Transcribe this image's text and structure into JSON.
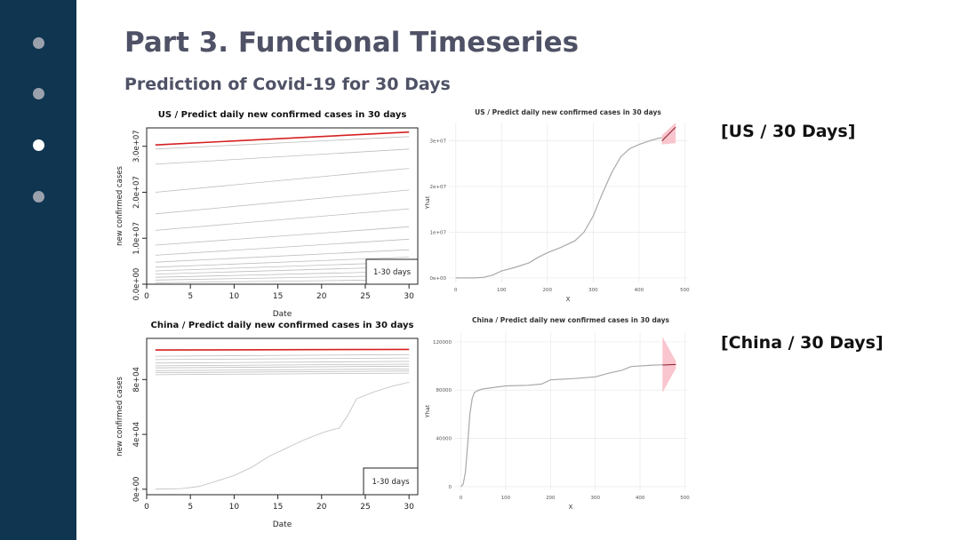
{
  "slide": {
    "title": "Part 3. Functional Timeseries",
    "subtitle": "Prediction of Covid-19 for 30 Days",
    "caption_us": "[US / 30 Days]",
    "caption_china": "[China / 30 Days]"
  },
  "nav": {
    "dots": [
      "inactive",
      "inactive",
      "active",
      "inactive"
    ]
  },
  "colors": {
    "sidebar": "#0f3550",
    "title": "#4f5266",
    "forecast": "#d62020",
    "band": "#f7b6c2"
  },
  "chart_data": [
    {
      "id": "us_fts",
      "type": "line",
      "title": "US / Predict daily new confirmed cases in 30 days",
      "xlabel": "Date",
      "ylabel": "new confirmed cases",
      "xlim": [
        0,
        31
      ],
      "ylim": [
        0,
        34000000
      ],
      "xticks": [
        0,
        5,
        10,
        15,
        20,
        25,
        30
      ],
      "yticks": [
        0,
        10000000,
        20000000,
        30000000
      ],
      "ytick_labels": [
        "0.0e+00",
        "1.0e+07",
        "2.0e+07",
        "3.0e+07"
      ],
      "legend": "1-30 days",
      "legend_position": "bottom-right",
      "x_start": 1,
      "x_end": 30,
      "highlight": {
        "start": 30300000,
        "end": 33100000
      },
      "curves": [
        [
          29400000,
          32100000
        ],
        [
          26100000,
          29400000
        ],
        [
          20000000,
          25200000
        ],
        [
          15300000,
          20500000
        ],
        [
          11700000,
          16400000
        ],
        [
          8500000,
          12500000
        ],
        [
          6300000,
          9800000
        ],
        [
          4800000,
          7500000
        ],
        [
          3700000,
          5900000
        ],
        [
          2900000,
          4800000
        ],
        [
          2200000,
          3800000
        ],
        [
          1500000,
          2800000
        ],
        [
          900000,
          1900000
        ],
        [
          300000,
          1000000
        ]
      ]
    },
    {
      "id": "us_pred",
      "type": "line",
      "title": "US / Predict daily new confirmed cases in 30 days",
      "xlabel": "X",
      "ylabel": "Yhat",
      "xlim": [
        -15,
        505
      ],
      "ylim": [
        -1000000,
        34000000
      ],
      "xticks": [
        0,
        100,
        200,
        300,
        400,
        500
      ],
      "yticks": [
        0,
        10000000,
        20000000,
        30000000
      ],
      "ytick_labels": [
        "0e+00",
        "1e+07",
        "2e+07",
        "3e+07"
      ],
      "grid": true,
      "history": {
        "x": [
          0,
          40,
          60,
          80,
          100,
          130,
          160,
          180,
          200,
          230,
          260,
          280,
          300,
          320,
          340,
          360,
          380,
          400,
          420,
          440,
          450
        ],
        "y": [
          0,
          0,
          100000,
          600000,
          1500000,
          2300000,
          3300000,
          4500000,
          5500000,
          6700000,
          8100000,
          10000000,
          13500000,
          18500000,
          23000000,
          26500000,
          28300000,
          29200000,
          29900000,
          30500000,
          30700000
        ]
      },
      "forecast": {
        "x": [
          450,
          480
        ],
        "y": [
          30000000,
          33000000
        ]
      },
      "band": {
        "x": [
          450,
          480
        ],
        "lower": [
          29200000,
          29500000
        ],
        "upper": [
          31200000,
          34000000
        ]
      }
    },
    {
      "id": "china_fts",
      "type": "line",
      "title": "China / Predict daily new confirmed cases in 30 days",
      "xlabel": "Date",
      "ylabel": "new confirmed cases",
      "xlim": [
        0,
        31
      ],
      "ylim": [
        -4000,
        110000
      ],
      "xticks": [
        0,
        5,
        10,
        15,
        20,
        25,
        30
      ],
      "yticks": [
        0,
        40000,
        80000
      ],
      "ytick_labels": [
        "0e+00",
        "4e+04",
        "8e+04"
      ],
      "legend": "1-30 days",
      "legend_position": "bottom-right",
      "x_start": 1,
      "x_end": 30,
      "highlight": {
        "start": 101500,
        "end": 102000
      },
      "flat_curves": [
        97000,
        94500,
        92000,
        90000,
        88500,
        86500,
        85000,
        83500
      ],
      "rising_curve": {
        "x": [
          1,
          4,
          6,
          8,
          10,
          12,
          14,
          16,
          18,
          20,
          21,
          22,
          23,
          24,
          26,
          28,
          30
        ],
        "y": [
          0,
          500,
          2000,
          6000,
          10000,
          16000,
          24000,
          30000,
          36000,
          41000,
          43000,
          44500,
          54000,
          66000,
          71000,
          75000,
          78000
        ]
      }
    },
    {
      "id": "china_pred",
      "type": "line",
      "title": "China / Predict daily new confirmed cases in 30 days",
      "xlabel": "X",
      "ylabel": "Yhat",
      "xlim": [
        -15,
        505
      ],
      "ylim": [
        -3000,
        128000
      ],
      "xticks": [
        0,
        100,
        200,
        300,
        400,
        500
      ],
      "yticks": [
        0,
        40000,
        80000,
        120000
      ],
      "ytick_labels": [
        "0",
        "40000",
        "80000",
        "120000"
      ],
      "grid": true,
      "history": {
        "x": [
          0,
          5,
          10,
          15,
          20,
          25,
          30,
          40,
          50,
          70,
          100,
          150,
          180,
          200,
          250,
          300,
          330,
          360,
          380,
          420,
          450
        ],
        "y": [
          0,
          2000,
          12000,
          35000,
          60000,
          73000,
          78000,
          80000,
          81000,
          82000,
          83500,
          84000,
          85000,
          88500,
          89500,
          91000,
          94000,
          96500,
          99500,
          100500,
          101000
        ]
      },
      "forecast": {
        "x": [
          450,
          480
        ],
        "y": [
          100800,
          101200
        ]
      },
      "band": {
        "x": [
          450,
          480
        ],
        "lower": [
          78000,
          98000
        ],
        "upper": [
          124000,
          104000
        ]
      }
    }
  ]
}
